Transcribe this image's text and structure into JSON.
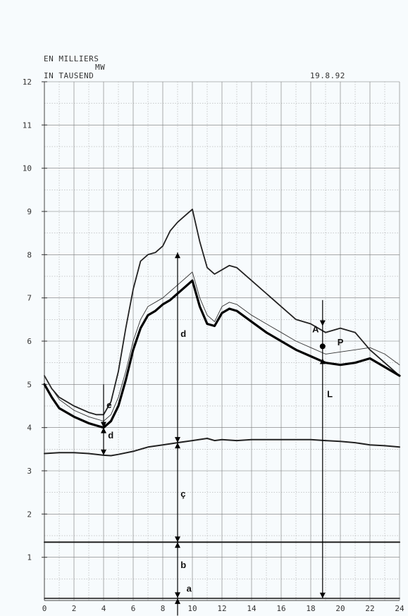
{
  "header": {
    "unit_fr": "EN MILLIERS",
    "unit_de": "IN TAUSEND",
    "unit_mw": "MW",
    "date": "19.8.92"
  },
  "chart_data": {
    "type": "line",
    "title": "",
    "xlabel": "",
    "ylabel": "",
    "xlim": [
      0,
      24
    ],
    "ylim": [
      0,
      12
    ],
    "x_ticks": [
      "0",
      "2",
      "4",
      "6",
      "8",
      "10",
      "12",
      "14",
      "16",
      "18",
      "20",
      "22",
      "24"
    ],
    "y_ticks": [
      "1",
      "2",
      "3",
      "4",
      "5",
      "6",
      "7",
      "8",
      "9",
      "10",
      "11",
      "12"
    ],
    "grid": true,
    "series": [
      {
        "style": "thin-upper",
        "x": [
          0,
          0.5,
          1,
          2,
          3,
          3.5,
          4,
          4.5,
          5,
          5.5,
          6,
          6.5,
          7,
          7.5,
          8,
          8.5,
          9,
          9.5,
          10,
          10.5,
          11,
          11.5,
          12,
          12.5,
          13,
          14,
          15,
          16,
          17,
          18,
          19,
          20,
          21,
          22,
          23,
          24
        ],
        "y": [
          5.2,
          4.9,
          4.7,
          4.5,
          4.35,
          4.3,
          4.3,
          4.6,
          5.3,
          6.3,
          7.2,
          7.85,
          8.0,
          8.05,
          8.2,
          8.55,
          8.75,
          8.9,
          9.05,
          8.3,
          7.7,
          7.55,
          7.65,
          7.75,
          7.7,
          7.4,
          7.1,
          6.8,
          6.5,
          6.4,
          6.2,
          6.3,
          6.2,
          5.8,
          5.5,
          5.2
        ]
      },
      {
        "style": "thin-middle",
        "x": [
          0,
          0.5,
          1,
          2,
          3,
          3.5,
          4,
          4.5,
          5,
          5.5,
          6,
          6.5,
          7,
          7.5,
          8,
          8.5,
          9,
          9.5,
          10,
          10.5,
          11,
          11.5,
          12,
          12.5,
          13,
          14,
          15,
          16,
          17,
          18,
          19,
          20,
          21,
          22,
          23,
          24
        ],
        "y": [
          5.2,
          4.9,
          4.65,
          4.4,
          4.25,
          4.2,
          4.15,
          4.3,
          4.7,
          5.3,
          6.0,
          6.5,
          6.8,
          6.9,
          7.0,
          7.15,
          7.3,
          7.45,
          7.6,
          7.0,
          6.6,
          6.45,
          6.8,
          6.9,
          6.85,
          6.6,
          6.4,
          6.2,
          6.0,
          5.85,
          5.7,
          5.75,
          5.8,
          5.85,
          5.7,
          5.45
        ]
      },
      {
        "style": "bold-lower",
        "x": [
          0,
          0.5,
          1,
          2,
          3,
          3.5,
          4,
          4.5,
          5,
          5.5,
          6,
          6.5,
          7,
          7.5,
          8,
          8.5,
          9,
          9.5,
          10,
          10.5,
          11,
          11.5,
          12,
          12.5,
          13,
          14,
          15,
          16,
          17,
          18,
          19,
          20,
          21,
          22,
          23,
          24
        ],
        "y": [
          5.0,
          4.7,
          4.45,
          4.25,
          4.1,
          4.05,
          4.0,
          4.15,
          4.5,
          5.1,
          5.8,
          6.3,
          6.6,
          6.7,
          6.85,
          6.95,
          7.1,
          7.25,
          7.4,
          6.8,
          6.4,
          6.35,
          6.65,
          6.75,
          6.7,
          6.45,
          6.2,
          6.0,
          5.8,
          5.65,
          5.5,
          5.45,
          5.5,
          5.6,
          5.4,
          5.2
        ]
      },
      {
        "style": "base",
        "x": [
          0,
          1,
          2,
          3,
          4,
          4.5,
          5,
          6,
          7,
          8,
          9,
          10,
          11,
          11.5,
          12,
          13,
          14,
          15,
          16,
          17,
          18,
          19,
          20,
          21,
          22,
          23,
          24
        ],
        "y": [
          3.4,
          3.42,
          3.42,
          3.4,
          3.36,
          3.35,
          3.38,
          3.45,
          3.55,
          3.6,
          3.65,
          3.7,
          3.75,
          3.7,
          3.72,
          3.7,
          3.72,
          3.72,
          3.72,
          3.72,
          3.72,
          3.7,
          3.68,
          3.65,
          3.6,
          3.58,
          3.55
        ]
      },
      {
        "style": "flat-b",
        "x": [
          0,
          24
        ],
        "y": [
          1.35,
          1.35
        ]
      },
      {
        "style": "flat-a",
        "x": [
          0,
          24
        ],
        "y": [
          0.05,
          0.05
        ]
      }
    ],
    "annotations": [
      {
        "label": "e",
        "x": 4.2,
        "y": 4.45
      },
      {
        "label": "d",
        "x": 4.3,
        "y": 3.75
      },
      {
        "label": "d",
        "x": 9.2,
        "y": 6.1
      },
      {
        "label": "ç",
        "x": 9.2,
        "y": 2.4
      },
      {
        "label": "b",
        "x": 9.2,
        "y": 0.75
      },
      {
        "label": "a",
        "x": 9.6,
        "y": 0.2
      },
      {
        "label": "A",
        "x": 18.1,
        "y": 6.2
      },
      {
        "label": "P",
        "x": 19.8,
        "y": 5.9
      },
      {
        "label": "L",
        "x": 19.1,
        "y": 4.7
      }
    ],
    "point_P": {
      "x": 18.8,
      "y": 5.88
    }
  }
}
